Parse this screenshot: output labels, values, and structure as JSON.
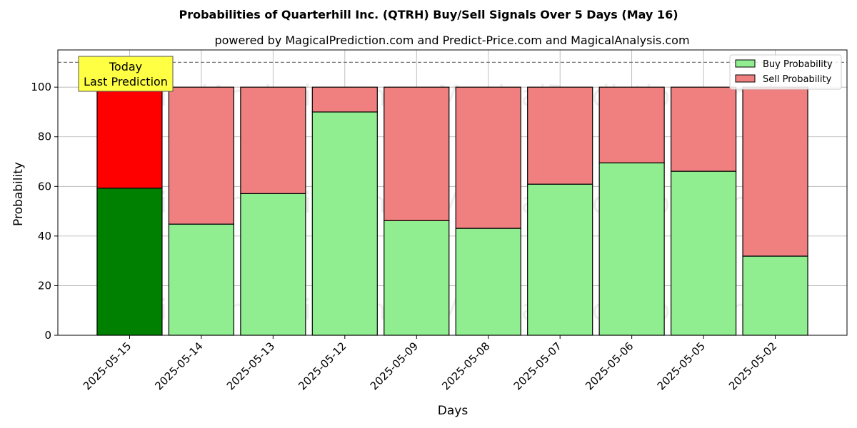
{
  "chart_data": {
    "type": "bar",
    "stacked": true,
    "title": "Probabilities of Quarterhill Inc. (QTRH) Buy/Sell Signals Over 5 Days (May 16)",
    "subtitle": "powered by MagicalPrediction.com and Predict-Price.com and MagicalAnalysis.com",
    "xlabel": "Days",
    "ylabel": "Probability",
    "ylim": [
      0,
      115
    ],
    "yticks": [
      0,
      20,
      40,
      60,
      80,
      100
    ],
    "reference_line": 110,
    "grid": true,
    "legend_position": "top-right",
    "categories": [
      "2025-05-15",
      "2025-05-14",
      "2025-05-13",
      "2025-05-12",
      "2025-05-09",
      "2025-05-08",
      "2025-05-07",
      "2025-05-06",
      "2025-05-05",
      "2025-05-02"
    ],
    "series": [
      {
        "name": "Buy Probability",
        "values": [
          59.3,
          44.8,
          57.1,
          90.0,
          46.2,
          43.1,
          60.9,
          69.5,
          66.1,
          31.9
        ]
      },
      {
        "name": "Sell Probability",
        "values": [
          40.7,
          55.2,
          42.9,
          10.0,
          53.8,
          56.9,
          39.1,
          30.5,
          33.9,
          68.1
        ]
      }
    ],
    "colors": {
      "buy": "#90ee90",
      "sell": "#f08080",
      "today_buy": "#008000",
      "today_sell": "#ff0000",
      "today_box": "#ffff44"
    },
    "today_annotation": [
      "Today",
      "Last Prediction"
    ],
    "watermarks": [
      "MagicalAnalysis.com",
      "MagicalPrediction.com"
    ]
  }
}
